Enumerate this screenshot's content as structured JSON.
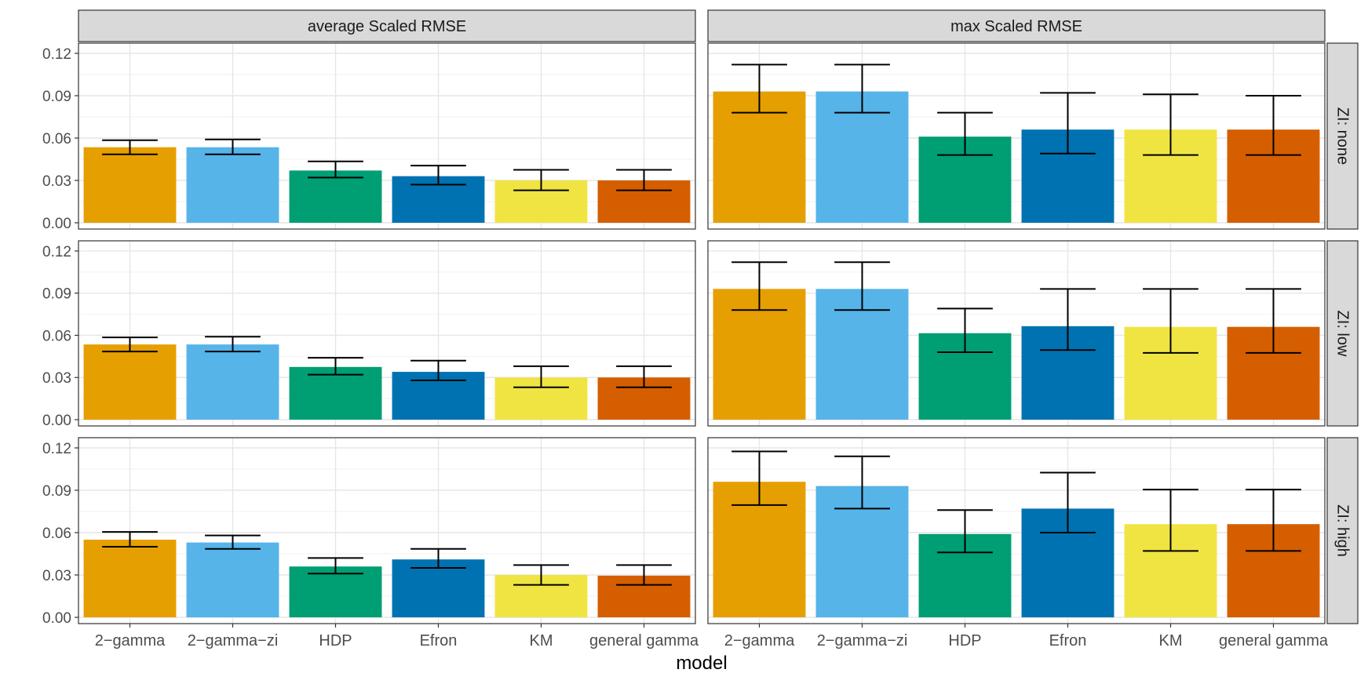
{
  "chart_data": {
    "type": "bar",
    "xlabel": "model",
    "ylabel": "",
    "ylim": [
      0,
      0.125
    ],
    "yticks": [
      0,
      0.03,
      0.06,
      0.09,
      0.12
    ],
    "ytick_labels": [
      "0.00",
      "0.03",
      "0.06",
      "0.09",
      "0.12"
    ],
    "grid": true,
    "legend": "none",
    "categories": [
      "2−gamma",
      "2−gamma−zi",
      "HDP",
      "Efron",
      "KM",
      "general gamma"
    ],
    "colors": [
      "#E69F00",
      "#56B4E9",
      "#009E73",
      "#0072B2",
      "#F0E442",
      "#D55E00"
    ],
    "columns": [
      "average Scaled RMSE",
      "max Scaled RMSE"
    ],
    "rows": [
      "ZI: none",
      "ZI: low",
      "ZI: high"
    ],
    "panels": [
      {
        "row": 0,
        "col": 0,
        "values": [
          0.0535,
          0.0535,
          0.037,
          0.033,
          0.03,
          0.03
        ],
        "lower": [
          0.0485,
          0.0485,
          0.032,
          0.027,
          0.023,
          0.023
        ],
        "upper": [
          0.0585,
          0.059,
          0.0435,
          0.0405,
          0.0375,
          0.0375
        ]
      },
      {
        "row": 0,
        "col": 1,
        "values": [
          0.093,
          0.093,
          0.061,
          0.066,
          0.066,
          0.066
        ],
        "lower": [
          0.078,
          0.078,
          0.048,
          0.049,
          0.048,
          0.048
        ],
        "upper": [
          0.112,
          0.112,
          0.078,
          0.092,
          0.091,
          0.09
        ]
      },
      {
        "row": 1,
        "col": 0,
        "values": [
          0.0535,
          0.0535,
          0.0375,
          0.034,
          0.03,
          0.03
        ],
        "lower": [
          0.0485,
          0.0485,
          0.032,
          0.028,
          0.023,
          0.023
        ],
        "upper": [
          0.0585,
          0.059,
          0.044,
          0.042,
          0.038,
          0.038
        ]
      },
      {
        "row": 1,
        "col": 1,
        "values": [
          0.093,
          0.093,
          0.0615,
          0.0665,
          0.066,
          0.066
        ],
        "lower": [
          0.078,
          0.078,
          0.048,
          0.0495,
          0.0475,
          0.0475
        ],
        "upper": [
          0.112,
          0.112,
          0.079,
          0.093,
          0.093,
          0.093
        ]
      },
      {
        "row": 2,
        "col": 0,
        "values": [
          0.055,
          0.053,
          0.036,
          0.041,
          0.03,
          0.0295
        ],
        "lower": [
          0.05,
          0.0485,
          0.031,
          0.035,
          0.023,
          0.023
        ],
        "upper": [
          0.0605,
          0.058,
          0.042,
          0.0485,
          0.037,
          0.037
        ]
      },
      {
        "row": 2,
        "col": 1,
        "values": [
          0.096,
          0.093,
          0.059,
          0.077,
          0.066,
          0.066
        ],
        "lower": [
          0.0795,
          0.077,
          0.046,
          0.06,
          0.047,
          0.047
        ],
        "upper": [
          0.1175,
          0.114,
          0.076,
          0.1025,
          0.0905,
          0.0905
        ]
      }
    ]
  }
}
